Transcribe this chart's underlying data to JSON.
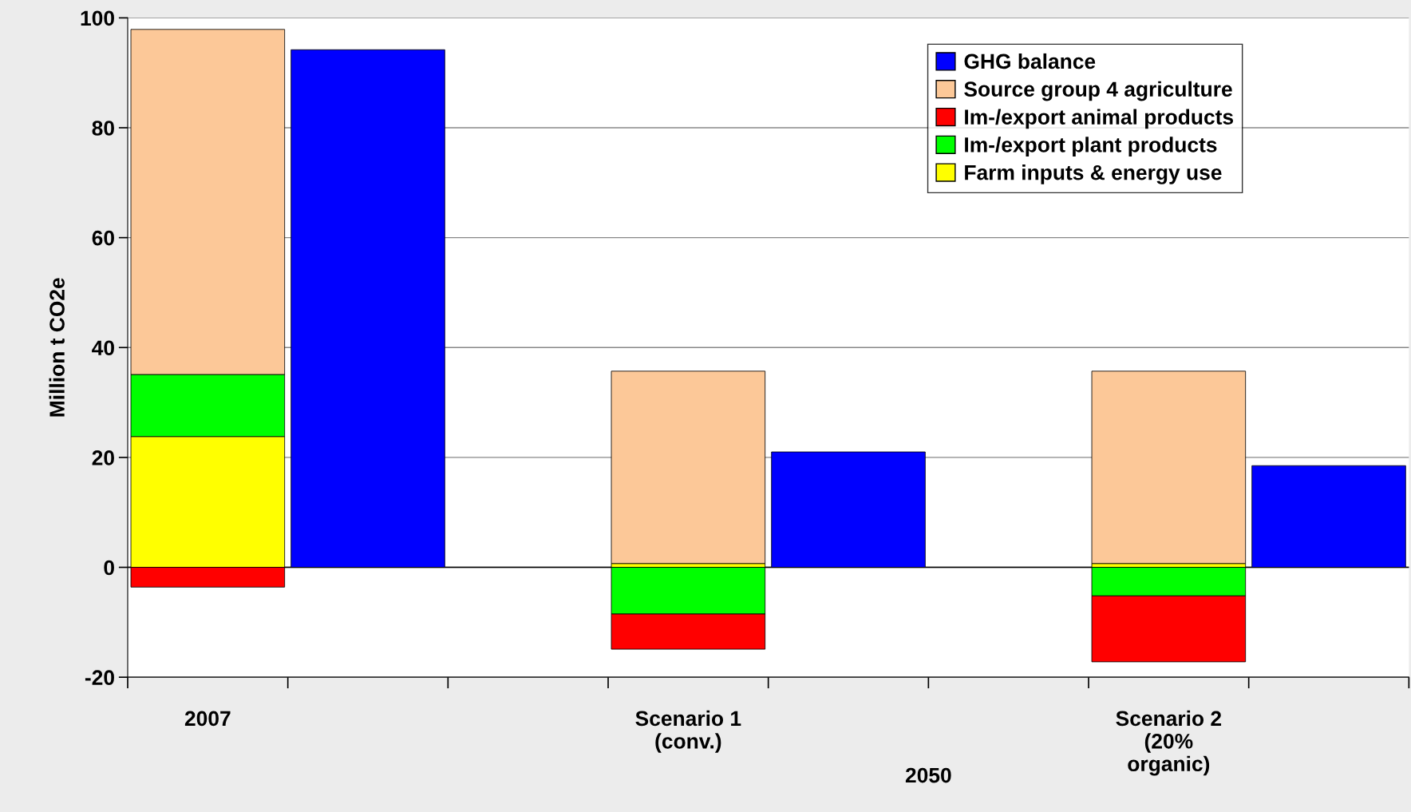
{
  "chart_data": {
    "type": "bar",
    "stacked": true,
    "ylabel": "Million t CO2e",
    "categories": [
      "2007",
      null,
      null,
      "Scenario 1\n(conv.)",
      null,
      null,
      "Scenario 2\n(20%\norganic)",
      null
    ],
    "series": [
      {
        "name": "Farm inputs & energy use",
        "color": "#ffff00",
        "values": [
          23.8,
          null,
          null,
          0.7,
          null,
          null,
          0.7,
          null
        ]
      },
      {
        "name": "Im-/export plant products",
        "color": "#00ff00",
        "values": [
          11.3,
          null,
          null,
          -8.5,
          null,
          null,
          -5.2,
          null
        ]
      },
      {
        "name": "Im-/export animal products",
        "color": "#ff0000",
        "values": [
          -3.6,
          null,
          null,
          -6.4,
          null,
          null,
          -12.0,
          null
        ]
      },
      {
        "name": "Source group 4 agriculture",
        "color": "#fcc898",
        "values": [
          62.8,
          null,
          null,
          35.0,
          null,
          null,
          35.0,
          null
        ]
      },
      {
        "name": "GHG balance",
        "color": "#0000ff",
        "values": [
          null,
          94.2,
          null,
          null,
          21.0,
          null,
          null,
          18.5
        ]
      }
    ],
    "ylim": [
      -20,
      100
    ],
    "yticks": [
      -20,
      0,
      20,
      40,
      60,
      80,
      100
    ],
    "grid": "y",
    "legend": "top right",
    "annotations": [
      "2050"
    ]
  }
}
